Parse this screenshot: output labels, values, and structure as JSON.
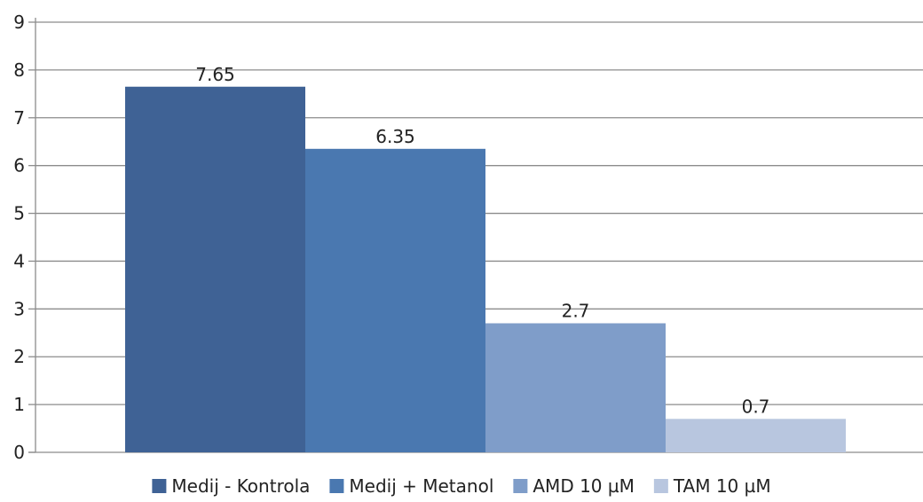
{
  "chart_data": {
    "type": "bar",
    "title": "",
    "xlabel": "",
    "ylabel": "",
    "ylim": [
      0,
      9
    ],
    "y_ticks": [
      0,
      1,
      2,
      3,
      4,
      5,
      6,
      7,
      8,
      9
    ],
    "grid": true,
    "legend_position": "bottom",
    "series": [
      {
        "name": "Medij - Kontrola",
        "value": 7.65,
        "label": "7.65",
        "color": "#3f6295"
      },
      {
        "name": "Medij + Metanol",
        "value": 6.35,
        "label": "6.35",
        "color": "#4a78b0"
      },
      {
        "name": "AMD 10 µM",
        "value": 2.7,
        "label": "2.7",
        "color": "#7f9dc9"
      },
      {
        "name": "TAM 10 µM",
        "value": 0.7,
        "label": "0.7",
        "color": "#b8c6df"
      }
    ]
  }
}
